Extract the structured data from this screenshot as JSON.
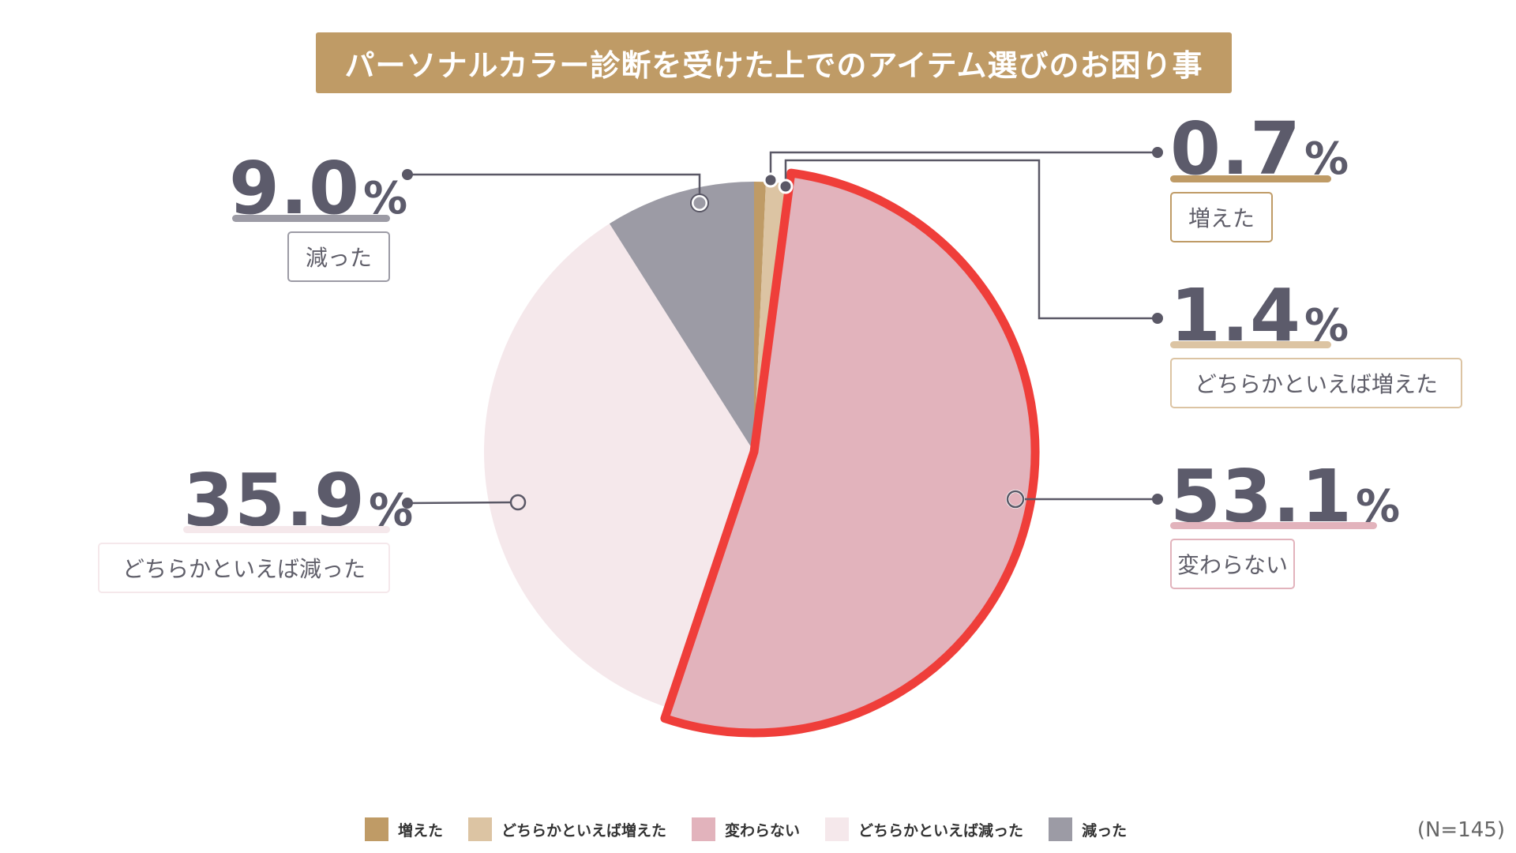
{
  "title": "パーソナルカラー診断を受けた上でのアイテム選びのお困り事",
  "chart_data": {
    "type": "pie",
    "title": "パーソナルカラー診断を受けた上でのアイテム選びのお困り事",
    "start": "12 o'clock, clockwise",
    "highlight": "変わらない",
    "slices": [
      {
        "label": "増えた",
        "value": 0.7,
        "color": "#bf9b66"
      },
      {
        "label": "どちらかといえば増えた",
        "value": 1.4,
        "color": "#dcc4a3"
      },
      {
        "label": "変わらない",
        "value": 53.1,
        "color": "#e2b3bc"
      },
      {
        "label": "どちらかといえば減った",
        "value": 35.9,
        "color": "#f5e8eb"
      },
      {
        "label": "減った",
        "value": 9.0,
        "color": "#9c9ba5"
      }
    ],
    "value_unit": "%",
    "note": "(N=145)"
  },
  "labels": {
    "inc": {
      "num": "0.7",
      "unit": "%",
      "label": "増えた"
    },
    "slight_inc": {
      "num": "1.4",
      "unit": "%",
      "label": "どちらかといえば増えた"
    },
    "same": {
      "num": "53.1",
      "unit": "%",
      "label": "変わらない"
    },
    "slight_dec": {
      "num": "35.9",
      "unit": "%",
      "label": "どちらかといえば減った"
    },
    "dec": {
      "num": "9.0",
      "unit": "%",
      "label": "減った"
    }
  },
  "legend": [
    {
      "label": "増えた",
      "color": "#bf9b66"
    },
    {
      "label": "どちらかといえば増えた",
      "color": "#dcc4a3"
    },
    {
      "label": "変わらない",
      "color": "#e2b3bc"
    },
    {
      "label": "どちらかといえば減った",
      "color": "#f5e8eb"
    },
    {
      "label": "減った",
      "color": "#9c9ba5"
    }
  ],
  "n_note": "(N=145)",
  "colors": {
    "highlight_border": "#ef3e3a",
    "leader_line": "#5a5866"
  }
}
